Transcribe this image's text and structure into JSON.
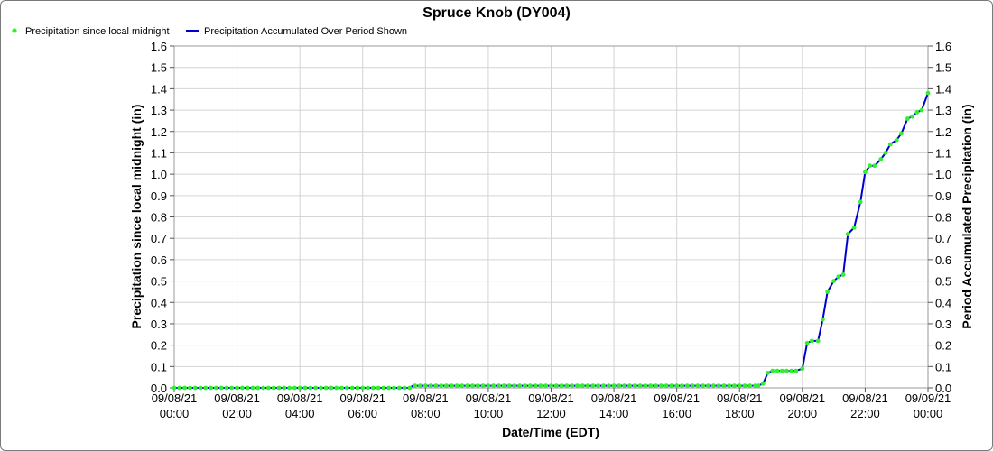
{
  "chart_data": {
    "type": "line",
    "title": "Spruce Knob (DY004)",
    "xlabel": "Date/Time (EDT)",
    "ylabel_left": "Precipitation since local midnight (in)",
    "ylabel_right": "Period Accumulated Precipitation (in)",
    "ylim": [
      0,
      1.6
    ],
    "y_ticks": [
      "0.0",
      "0.1",
      "0.2",
      "0.3",
      "0.4",
      "0.5",
      "0.6",
      "0.7",
      "0.8",
      "0.9",
      "1.0",
      "1.1",
      "1.2",
      "1.3",
      "1.4",
      "1.5",
      "1.6"
    ],
    "x_range_hours": [
      0,
      24
    ],
    "x_ticks": [
      {
        "date": "09/08/21",
        "time": "00:00"
      },
      {
        "date": "09/08/21",
        "time": "02:00"
      },
      {
        "date": "09/08/21",
        "time": "04:00"
      },
      {
        "date": "09/08/21",
        "time": "06:00"
      },
      {
        "date": "09/08/21",
        "time": "08:00"
      },
      {
        "date": "09/08/21",
        "time": "10:00"
      },
      {
        "date": "09/08/21",
        "time": "12:00"
      },
      {
        "date": "09/08/21",
        "time": "14:00"
      },
      {
        "date": "09/08/21",
        "time": "16:00"
      },
      {
        "date": "09/08/21",
        "time": "18:00"
      },
      {
        "date": "09/08/21",
        "time": "20:00"
      },
      {
        "date": "09/08/21",
        "time": "22:00"
      },
      {
        "date": "09/09/21",
        "time": "00:00"
      }
    ],
    "grid": true,
    "legend_position": "top-left",
    "series": [
      {
        "name": "Precipitation since local midnight",
        "style": "points",
        "color": "#33ee33",
        "values": [
          [
            0,
            0
          ],
          [
            7.5,
            0
          ],
          [
            7.6,
            0.01
          ],
          [
            18.6,
            0.01
          ],
          [
            18.75,
            0.02
          ],
          [
            18.9,
            0.07
          ],
          [
            19.05,
            0.08
          ],
          [
            19.2,
            0.08
          ],
          [
            19.35,
            0.08
          ],
          [
            19.5,
            0.08
          ],
          [
            19.65,
            0.08
          ],
          [
            19.8,
            0.08
          ],
          [
            20.0,
            0.09
          ],
          [
            20.15,
            0.21
          ],
          [
            20.3,
            0.22
          ],
          [
            20.5,
            0.22
          ],
          [
            20.65,
            0.32
          ],
          [
            20.8,
            0.45
          ],
          [
            21.0,
            0.5
          ],
          [
            21.15,
            0.52
          ],
          [
            21.3,
            0.53
          ],
          [
            21.45,
            0.72
          ],
          [
            21.65,
            0.75
          ],
          [
            21.85,
            0.87
          ],
          [
            22.0,
            1.01
          ],
          [
            22.15,
            1.04
          ],
          [
            22.3,
            1.04
          ],
          [
            22.5,
            1.07
          ],
          [
            22.65,
            1.1
          ],
          [
            22.8,
            1.14
          ],
          [
            23.0,
            1.16
          ],
          [
            23.15,
            1.19
          ],
          [
            23.35,
            1.26
          ],
          [
            23.5,
            1.27
          ],
          [
            23.65,
            1.29
          ],
          [
            23.8,
            1.3
          ],
          [
            24.0,
            1.38
          ]
        ]
      },
      {
        "name": "Precipitation Accumulated Over Period Shown",
        "style": "line",
        "color": "#0000cc",
        "values": [
          [
            0,
            0
          ],
          [
            7.5,
            0
          ],
          [
            7.6,
            0.01
          ],
          [
            18.6,
            0.01
          ],
          [
            18.75,
            0.02
          ],
          [
            18.9,
            0.07
          ],
          [
            19.05,
            0.08
          ],
          [
            19.2,
            0.08
          ],
          [
            19.35,
            0.08
          ],
          [
            19.5,
            0.08
          ],
          [
            19.65,
            0.08
          ],
          [
            19.8,
            0.08
          ],
          [
            20.0,
            0.09
          ],
          [
            20.15,
            0.21
          ],
          [
            20.3,
            0.22
          ],
          [
            20.5,
            0.22
          ],
          [
            20.65,
            0.32
          ],
          [
            20.8,
            0.45
          ],
          [
            21.0,
            0.5
          ],
          [
            21.15,
            0.52
          ],
          [
            21.3,
            0.53
          ],
          [
            21.45,
            0.72
          ],
          [
            21.65,
            0.75
          ],
          [
            21.85,
            0.87
          ],
          [
            22.0,
            1.01
          ],
          [
            22.15,
            1.04
          ],
          [
            22.3,
            1.04
          ],
          [
            22.5,
            1.07
          ],
          [
            22.65,
            1.1
          ],
          [
            22.8,
            1.14
          ],
          [
            23.0,
            1.16
          ],
          [
            23.15,
            1.19
          ],
          [
            23.35,
            1.26
          ],
          [
            23.5,
            1.27
          ],
          [
            23.65,
            1.29
          ],
          [
            23.8,
            1.3
          ],
          [
            24.0,
            1.38
          ]
        ]
      }
    ]
  }
}
